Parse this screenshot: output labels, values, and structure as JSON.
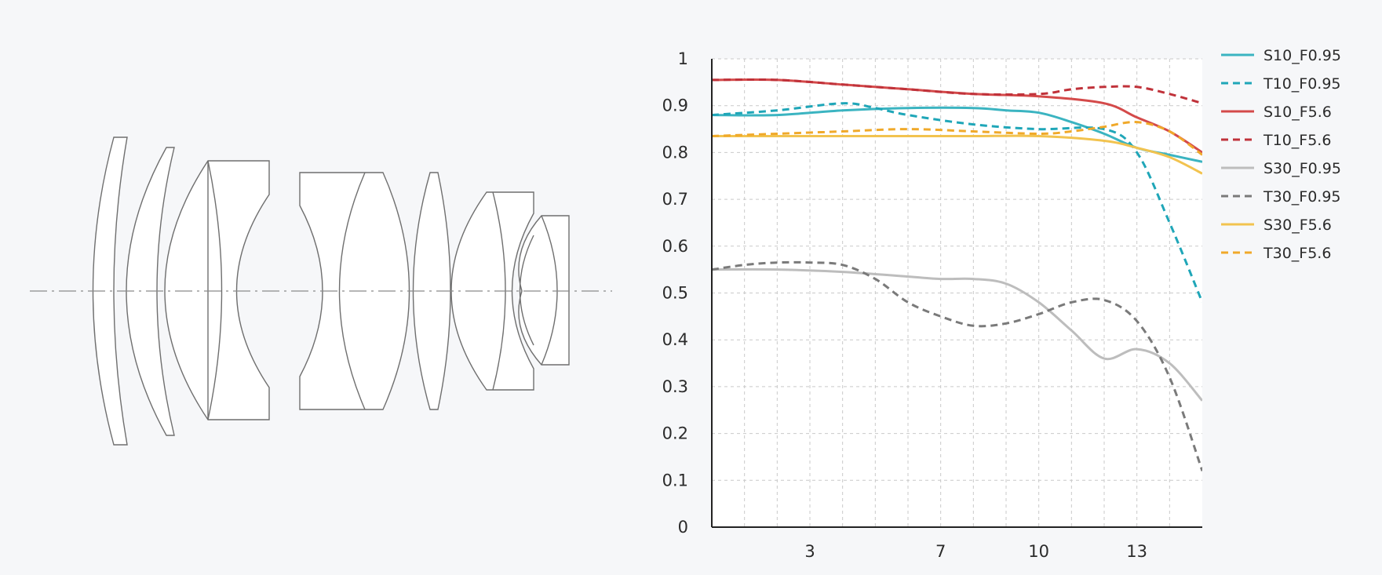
{
  "chart_data": {
    "type": "line",
    "title": "",
    "xlabel": "",
    "ylabel": "",
    "xlim": [
      0,
      15
    ],
    "ylim": [
      0,
      1
    ],
    "x_ticks": [
      3,
      7,
      10,
      13
    ],
    "y_ticks": [
      0,
      0.1,
      0.2,
      0.3,
      0.4,
      0.5,
      0.6,
      0.7,
      0.8,
      0.9,
      1
    ],
    "grid": true,
    "legend_position": "right",
    "series": [
      {
        "name": "S10_F0.95",
        "color": "#3bb4c1",
        "dash": "solid",
        "x": [
          0,
          2,
          4,
          6,
          8,
          9,
          10,
          11,
          12,
          13,
          14,
          15
        ],
        "y": [
          0.88,
          0.88,
          0.89,
          0.895,
          0.895,
          0.89,
          0.885,
          0.865,
          0.84,
          0.81,
          0.795,
          0.78
        ]
      },
      {
        "name": "T10_F0.95",
        "color": "#1fa6b8",
        "dash": "dashed",
        "x": [
          0,
          2,
          4,
          5,
          6,
          8,
          10,
          12,
          13,
          14,
          15
        ],
        "y": [
          0.88,
          0.89,
          0.905,
          0.895,
          0.88,
          0.86,
          0.85,
          0.85,
          0.8,
          0.65,
          0.48
        ]
      },
      {
        "name": "S10_F5.6",
        "color": "#d44a4a",
        "dash": "solid",
        "x": [
          0,
          2,
          4,
          6,
          8,
          10,
          12,
          13,
          14,
          15
        ],
        "y": [
          0.955,
          0.955,
          0.945,
          0.935,
          0.925,
          0.92,
          0.905,
          0.875,
          0.845,
          0.8
        ]
      },
      {
        "name": "T10_F5.6",
        "color": "#c0323a",
        "dash": "dashed",
        "x": [
          0,
          2,
          4,
          6,
          8,
          10,
          11,
          12,
          13,
          14,
          15
        ],
        "y": [
          0.955,
          0.955,
          0.945,
          0.935,
          0.925,
          0.925,
          0.935,
          0.94,
          0.94,
          0.925,
          0.905
        ]
      },
      {
        "name": "S30_F0.95",
        "color": "#bdbdbd",
        "dash": "solid",
        "x": [
          0,
          2,
          4,
          6,
          7,
          8,
          9,
          10,
          11,
          12,
          13,
          14,
          15
        ],
        "y": [
          0.55,
          0.55,
          0.545,
          0.535,
          0.53,
          0.53,
          0.52,
          0.48,
          0.42,
          0.36,
          0.38,
          0.35,
          0.27
        ]
      },
      {
        "name": "T30_F0.95",
        "color": "#7a7a7a",
        "dash": "dashed",
        "x": [
          0,
          1,
          2,
          3,
          4,
          5,
          6,
          7,
          8,
          9,
          10,
          11,
          12,
          13,
          14,
          15
        ],
        "y": [
          0.55,
          0.56,
          0.565,
          0.565,
          0.56,
          0.53,
          0.48,
          0.45,
          0.43,
          0.435,
          0.455,
          0.48,
          0.485,
          0.44,
          0.32,
          0.12
        ]
      },
      {
        "name": "S30_F5.6",
        "color": "#f2c34f",
        "dash": "solid",
        "x": [
          0,
          2,
          4,
          6,
          8,
          10,
          12,
          13,
          14,
          15
        ],
        "y": [
          0.835,
          0.835,
          0.835,
          0.835,
          0.835,
          0.835,
          0.825,
          0.81,
          0.79,
          0.755
        ]
      },
      {
        "name": "T30_F5.6",
        "color": "#f0a92a",
        "dash": "dashed",
        "x": [
          0,
          2,
          4,
          6,
          8,
          10,
          11,
          12,
          13,
          14,
          15
        ],
        "y": [
          0.835,
          0.84,
          0.845,
          0.85,
          0.845,
          0.84,
          0.845,
          0.855,
          0.865,
          0.845,
          0.795
        ]
      }
    ]
  }
}
